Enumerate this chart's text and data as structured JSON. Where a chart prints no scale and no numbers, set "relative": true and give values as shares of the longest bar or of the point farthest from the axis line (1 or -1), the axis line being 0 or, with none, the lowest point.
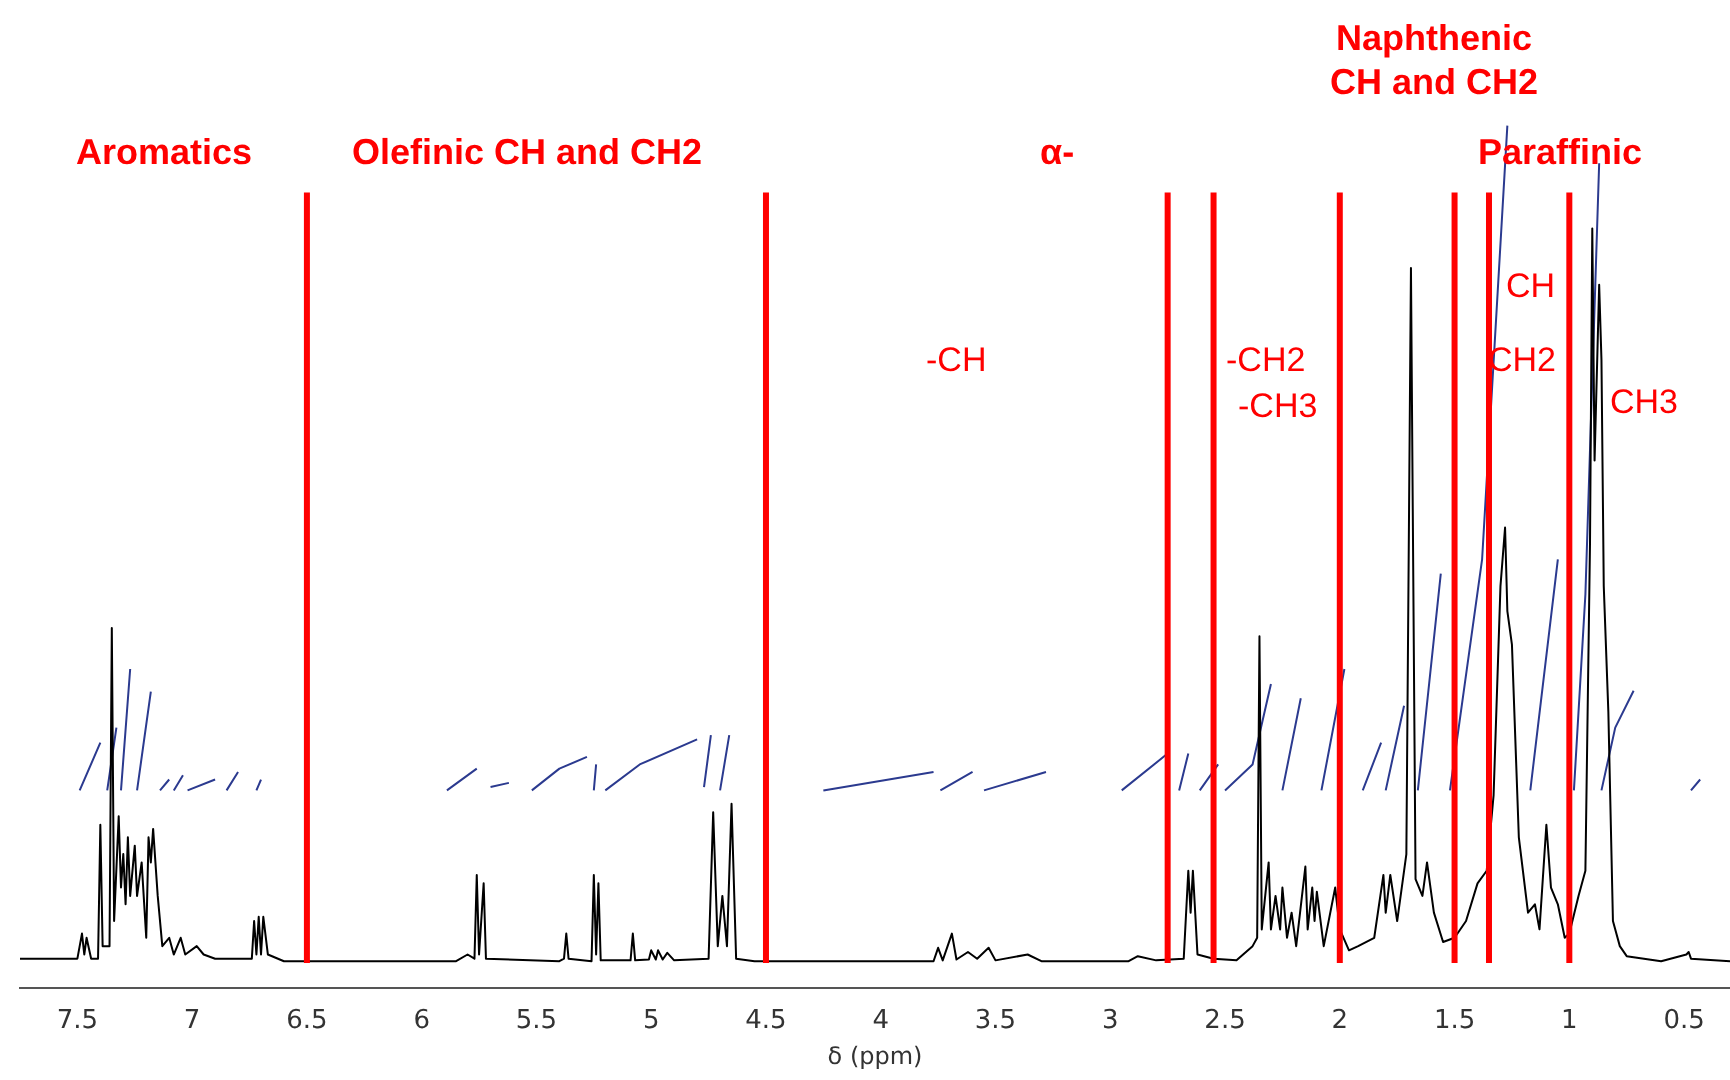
{
  "chart_data": {
    "type": "line",
    "relative": true,
    "xlabel": "δ (ppm)",
    "xlim": [
      7.75,
      0.3
    ],
    "xticks": [
      7.5,
      7,
      6.5,
      6,
      5.5,
      5,
      4.5,
      4,
      3.5,
      3,
      2.5,
      2,
      1.5,
      1,
      0.5
    ],
    "grid": false,
    "legend": false,
    "marker": "none",
    "line_style": "solid",
    "series": [
      {
        "color": "#000000",
        "x": [
          7.75,
          7.5,
          7.48,
          7.47,
          7.46,
          7.44,
          7.41,
          7.4,
          7.39,
          7.36,
          7.35,
          7.34,
          7.32,
          7.31,
          7.3,
          7.29,
          7.28,
          7.27,
          7.25,
          7.24,
          7.22,
          7.2,
          7.19,
          7.18,
          7.17,
          7.15,
          7.13,
          7.1,
          7.08,
          7.05,
          7.03,
          6.98,
          6.95,
          6.9,
          6.8,
          6.74,
          6.73,
          6.72,
          6.71,
          6.7,
          6.69,
          6.67,
          6.6,
          5.85,
          5.8,
          5.77,
          5.76,
          5.75,
          5.73,
          5.72,
          5.4,
          5.38,
          5.37,
          5.36,
          5.26,
          5.25,
          5.24,
          5.23,
          5.22,
          5.09,
          5.08,
          5.07,
          5.01,
          5,
          4.98,
          4.97,
          4.95,
          4.93,
          4.9,
          4.75,
          4.73,
          4.71,
          4.69,
          4.67,
          4.65,
          4.63,
          4.55,
          3.77,
          3.75,
          3.73,
          3.69,
          3.67,
          3.62,
          3.58,
          3.53,
          3.5,
          3.36,
          3.3,
          2.92,
          2.88,
          2.8,
          2.68,
          2.66,
          2.65,
          2.64,
          2.62,
          2.55,
          2.45,
          2.38,
          2.36,
          2.35,
          2.34,
          2.31,
          2.3,
          2.28,
          2.26,
          2.25,
          2.23,
          2.21,
          2.19,
          2.15,
          2.14,
          2.12,
          2.11,
          2.1,
          2.07,
          2.02,
          2,
          1.96,
          1.92,
          1.85,
          1.81,
          1.8,
          1.78,
          1.75,
          1.71,
          1.69,
          1.67,
          1.64,
          1.62,
          1.59,
          1.55,
          1.5,
          1.45,
          1.4,
          1.36,
          1.33,
          1.3,
          1.28,
          1.27,
          1.25,
          1.22,
          1.18,
          1.15,
          1.13,
          1.1,
          1.08,
          1.05,
          1.02,
          1,
          0.96,
          0.93,
          0.91,
          0.9,
          0.89,
          0.87,
          0.86,
          0.85,
          0.83,
          0.81,
          0.78,
          0.75,
          0.6,
          0.49,
          0.48,
          0.47,
          0.3
        ],
        "values": [
          0.005,
          0.005,
          0.035,
          0.01,
          0.03,
          0.005,
          0.005,
          0.165,
          0.02,
          0.02,
          0.4,
          0.05,
          0.175,
          0.09,
          0.13,
          0.07,
          0.15,
          0.08,
          0.14,
          0.08,
          0.12,
          0.03,
          0.15,
          0.12,
          0.16,
          0.08,
          0.02,
          0.03,
          0.01,
          0.03,
          0.01,
          0.02,
          0.01,
          0.005,
          0.005,
          0.005,
          0.05,
          0.01,
          0.055,
          0.01,
          0.055,
          0.01,
          0.002,
          0.002,
          0.01,
          0.005,
          0.105,
          0.01,
          0.095,
          0.005,
          0.002,
          0.005,
          0.035,
          0.005,
          0.002,
          0.105,
          0.01,
          0.095,
          0.003,
          0.003,
          0.035,
          0.003,
          0.004,
          0.015,
          0.004,
          0.015,
          0.004,
          0.012,
          0.003,
          0.005,
          0.18,
          0.02,
          0.08,
          0.02,
          0.19,
          0.005,
          0.002,
          0.002,
          0.018,
          0.003,
          0.035,
          0.004,
          0.013,
          0.005,
          0.018,
          0.003,
          0.01,
          0.002,
          0.002,
          0.008,
          0.003,
          0.005,
          0.11,
          0.06,
          0.11,
          0.01,
          0.005,
          0.003,
          0.02,
          0.03,
          0.39,
          0.04,
          0.12,
          0.04,
          0.08,
          0.04,
          0.09,
          0.03,
          0.06,
          0.02,
          0.115,
          0.04,
          0.09,
          0.05,
          0.085,
          0.02,
          0.09,
          0.04,
          0.015,
          0.02,
          0.03,
          0.105,
          0.06,
          0.105,
          0.05,
          0.13,
          0.83,
          0.1,
          0.08,
          0.12,
          0.06,
          0.025,
          0.03,
          0.05,
          0.095,
          0.11,
          0.2,
          0.45,
          0.52,
          0.42,
          0.38,
          0.15,
          0.06,
          0.07,
          0.04,
          0.165,
          0.09,
          0.07,
          0.03,
          0.035,
          0.08,
          0.11,
          0.5,
          0.877,
          0.6,
          0.81,
          0.72,
          0.45,
          0.3,
          0.05,
          0.02,
          0.008,
          0.002,
          0.01,
          0.013,
          0.005,
          0.002
        ]
      },
      {
        "color": "#2b3a8f",
        "x": [
          7.49,
          7.4,
          7.39,
          7.37,
          7.33,
          7.32,
          7.31,
          7.27,
          7.26,
          7.24,
          7.18,
          7.17,
          7.14,
          7.1,
          7.09,
          7.08,
          7.04,
          7.03,
          7.02,
          6.9,
          6.87,
          6.85,
          6.8,
          6.76,
          6.72,
          6.7,
          5.95,
          5.89,
          5.76,
          5.74,
          5.7,
          5.62,
          5.58,
          5.52,
          5.4,
          5.28,
          5.26,
          5.25,
          5.24,
          5.22,
          5.2,
          5.05,
          4.8,
          4.78,
          4.77,
          4.74,
          4.72,
          4.7,
          4.66,
          4.3,
          4.25,
          3.77,
          3.76,
          3.74,
          3.6,
          3.57,
          3.55,
          3.28,
          3,
          2.95,
          2.75,
          2.72,
          2.7,
          2.66,
          2.63,
          2.61,
          2.53,
          2.51,
          2.5,
          2.38,
          2.3,
          2.27,
          2.25,
          2.17,
          2.1,
          2.08,
          1.98,
          1.93,
          1.9,
          1.82,
          1.81,
          1.8,
          1.72,
          1.67,
          1.66,
          1.56,
          1.53,
          1.52,
          1.38,
          1.27,
          1.19,
          1.17,
          1.05,
          1.0,
          0.98,
          0.93,
          0.87,
          0.865,
          0.86,
          0.8,
          0.72,
          0.5,
          0.47,
          0.43
        ],
        "values": [
          0.206,
          0.263,
          null,
          0.206,
          0.281,
          null,
          0.206,
          0.351,
          null,
          0.206,
          0.324,
          null,
          0.206,
          0.219,
          null,
          0.206,
          0.224,
          null,
          0.206,
          0.219,
          null,
          0.206,
          0.228,
          null,
          0.206,
          0.219,
          null,
          0.206,
          0.232,
          null,
          0.21,
          0.215,
          null,
          0.206,
          0.232,
          0.246,
          null,
          0.206,
          0.237,
          null,
          0.206,
          0.237,
          0.267,
          null,
          0.21,
          0.272,
          null,
          0.206,
          0.272,
          null,
          0.206,
          0.228,
          null,
          0.206,
          0.228,
          null,
          0.206,
          0.228,
          null,
          0.206,
          0.25,
          null,
          0.206,
          0.25,
          null,
          0.206,
          0.237,
          null,
          0.206,
          0.237,
          0.333,
          null,
          0.206,
          0.316,
          null,
          0.206,
          0.351,
          null,
          0.206,
          0.263,
          null,
          0.206,
          0.307,
          null,
          0.206,
          0.465,
          null,
          0.206,
          0.482,
          1.0,
          null,
          0.206,
          0.482,
          null,
          0.206,
          0.44,
          0.955,
          null,
          0.206,
          0.281,
          0.325,
          null,
          0.206,
          0.219
        ]
      }
    ],
    "ref_lines": [
      {
        "axis": "x",
        "value": 6.5,
        "color": "#ff0000"
      },
      {
        "axis": "x",
        "value": 4.5,
        "color": "#ff0000"
      },
      {
        "axis": "x",
        "value": 2.75,
        "color": "#ff0000"
      },
      {
        "axis": "x",
        "value": 2.55,
        "color": "#ff0000"
      },
      {
        "axis": "x",
        "value": 2.0,
        "color": "#ff0000"
      },
      {
        "axis": "x",
        "value": 1.5,
        "color": "#ff0000"
      },
      {
        "axis": "x",
        "value": 1.35,
        "color": "#ff0000"
      },
      {
        "axis": "x",
        "value": 1.0,
        "color": "#ff0000"
      }
    ],
    "annotations": [
      "Aromatics",
      "Olefinic CH and CH2",
      "α-",
      "Naphthenic\nCH and CH2",
      "Paraffinic",
      "-CH",
      "-CH2",
      "-CH3",
      "CH",
      "CH2",
      "CH3"
    ]
  }
}
